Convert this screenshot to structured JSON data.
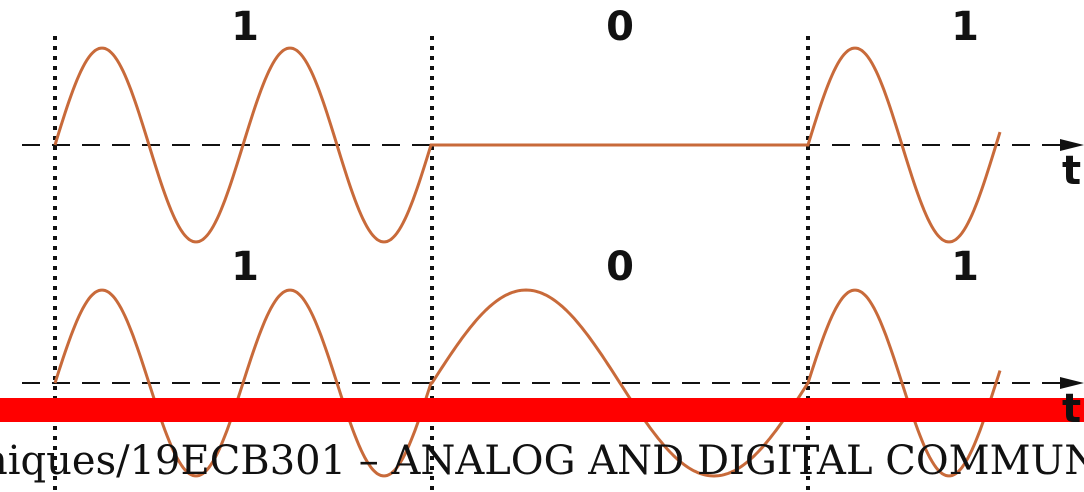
{
  "diagram": {
    "top_row": {
      "bits": [
        "1",
        "0",
        "1"
      ],
      "axis_label": "t"
    },
    "bottom_row": {
      "bits": [
        "1",
        "0",
        "1"
      ],
      "axis_label": "t"
    }
  },
  "colors": {
    "waveform": "#c86a3a",
    "grid": "#111111",
    "banner": "#ff0000",
    "background": "#ffffff"
  },
  "footer": {
    "text": "niques/19ECB301 – ANALOG AND DIGITAL COMMUN"
  }
}
